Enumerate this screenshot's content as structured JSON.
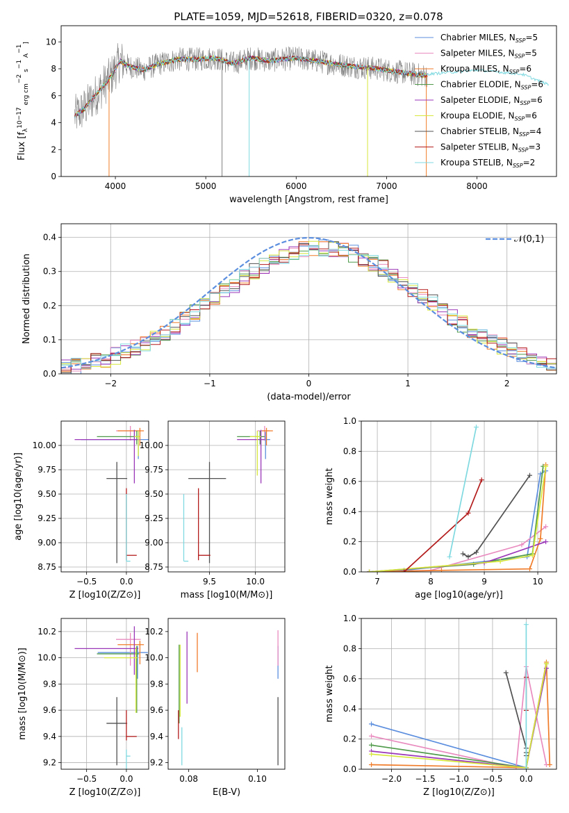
{
  "figure_title": "PLATE=1059, MJD=52618, FIBERID=0320, z=0.078",
  "colors": {
    "chabrier_miles": "#5b8ede",
    "salpeter_miles": "#e98bbf",
    "kroupa_miles": "#f07b28",
    "chabrier_elodie": "#4f9a4a",
    "salpeter_elodie": "#9a36b8",
    "kroupa_elodie": "#d7e83a",
    "chabrier_stelib": "#505050",
    "salpeter_stelib": "#b31b1b",
    "kroupa_stelib": "#7fd9e0",
    "data": "#808080",
    "grid": "#b0b0b0"
  },
  "chart_data": [
    {
      "id": "spectrum",
      "type": "line",
      "title": "PLATE=1059, MJD=52618, FIBERID=0320, z=0.078",
      "xlabel": "wavelength [Angstrom, rest frame]",
      "ylabel_parts": [
        "Flux [f",
        "λ",
        "10",
        "−17",
        " erg cm",
        "−2",
        " s",
        "−1",
        " A",
        "−1",
        "]"
      ],
      "xlim": [
        3400,
        8880
      ],
      "ylim": [
        0,
        11.2
      ],
      "xticks": [
        4000,
        5000,
        6000,
        7000,
        8000
      ],
      "yticks": [
        0,
        2,
        4,
        6,
        8,
        10
      ],
      "grid": false,
      "legend_position": "right",
      "legend": [
        {
          "model": "Chabrier MILES",
          "n": "5",
          "color_key": "chabrier_miles"
        },
        {
          "model": "Salpeter MILES",
          "n": "5",
          "color_key": "salpeter_miles"
        },
        {
          "model": "Kroupa MILES",
          "n": "6",
          "color_key": "kroupa_miles"
        },
        {
          "model": "Chabrier ELODIE",
          "n": "6",
          "color_key": "chabrier_elodie"
        },
        {
          "model": "Salpeter ELODIE",
          "n": "6",
          "color_key": "salpeter_elodie"
        },
        {
          "model": "Kroupa ELODIE",
          "n": "6",
          "color_key": "kroupa_elodie"
        },
        {
          "model": "Chabrier STELIB",
          "n": "4",
          "color_key": "chabrier_stelib"
        },
        {
          "model": "Salpeter STELIB",
          "n": "3",
          "color_key": "salpeter_stelib"
        },
        {
          "model": "Kroupa STELIB",
          "n": "2",
          "color_key": "kroupa_stelib"
        }
      ],
      "continuum": {
        "x": [
          3550,
          3650,
          3750,
          3850,
          3950,
          4050,
          4150,
          4300,
          4500,
          4700,
          4900,
          5100,
          5300,
          5500,
          5700,
          6000,
          6300,
          6600,
          6900,
          7200,
          7400
        ],
        "y": [
          4.5,
          5.0,
          5.8,
          6.6,
          7.4,
          8.6,
          8.2,
          7.9,
          8.4,
          8.7,
          8.7,
          8.8,
          8.4,
          8.8,
          8.6,
          8.8,
          8.5,
          8.2,
          8.0,
          7.7,
          7.5
        ]
      },
      "models_end_x": 7450,
      "model_tail": {
        "x": [
          7450,
          8000,
          8500,
          8800
        ],
        "y": [
          7.6,
          7.9,
          7.6,
          6.8
        ]
      },
      "model_dips": [
        {
          "x": 3930,
          "y": 0,
          "color_key": "kroupa_miles"
        },
        {
          "x": 5180,
          "y": 0,
          "color_key": "data"
        },
        {
          "x": 5480,
          "y": 0,
          "color_key": "kroupa_stelib"
        },
        {
          "x": 6790,
          "y": 0,
          "color_key": "kroupa_elodie"
        },
        {
          "x": 7440,
          "y": 0,
          "color_key": "kroupa_miles"
        }
      ]
    },
    {
      "id": "residuals",
      "type": "histogram",
      "xlabel": "(data-model)/error",
      "ylabel": "Normed distribution",
      "xlim": [
        -2.5,
        2.5
      ],
      "ylim": [
        0,
        0.44
      ],
      "xticks": [
        -2,
        -1,
        0,
        1,
        2
      ],
      "yticks": [
        0.0,
        0.1,
        0.2,
        0.3,
        0.4
      ],
      "grid": true,
      "legend_position": "top-right",
      "reference_curve": {
        "label": "N(0,1)",
        "mean": 0,
        "sigma": 1,
        "style": "dashed",
        "color": "#5b8ede"
      },
      "bin_width": 0.1
    },
    {
      "id": "age_vs_Z",
      "type": "errorbar",
      "xlabel": "Z [log10(Z/Z⊙)]",
      "ylabel": "age  [log10(age/yr)]",
      "xlim": [
        -0.82,
        0.28
      ],
      "ylim": [
        8.7,
        10.25
      ],
      "xticks": [
        -0.5,
        0.0
      ],
      "yticks": [
        8.75,
        9.0,
        9.25,
        9.5,
        9.75,
        10.0
      ],
      "grid": true,
      "points": [
        {
          "color_key": "chabrier_miles",
          "x": 0.15,
          "y": 10.06,
          "xerr": [
            0.72,
            0.13
          ],
          "yerr": [
            0.2,
            0.08
          ]
        },
        {
          "color_key": "salpeter_miles",
          "x": 0.05,
          "y": 10.15,
          "xerr": [
            0.18,
            0.13
          ],
          "yerr": [
            0.1,
            0.05
          ]
        },
        {
          "color_key": "kroupa_miles",
          "x": 0.17,
          "y": 10.15,
          "xerr": [
            0.28,
            0.05
          ],
          "yerr": [
            0.15,
            0.03
          ]
        },
        {
          "color_key": "chabrier_elodie",
          "x": 0.13,
          "y": 10.09,
          "xerr": [
            0.5,
            0.03
          ],
          "yerr": [
            0.08,
            0.06
          ]
        },
        {
          "color_key": "salpeter_elodie",
          "x": 0.1,
          "y": 10.06,
          "xerr": [
            0.75,
            0.05
          ],
          "yerr": [
            0.45,
            0.1
          ]
        },
        {
          "color_key": "kroupa_elodie",
          "x": 0.15,
          "y": 10.09,
          "xerr": [
            0.05,
            0.02
          ],
          "yerr": [
            0.2,
            0.06
          ]
        },
        {
          "color_key": "chabrier_stelib",
          "x": -0.12,
          "y": 9.66,
          "xerr": [
            0.13,
            0.13
          ],
          "yerr": [
            0.87,
            0.17
          ]
        },
        {
          "color_key": "salpeter_stelib",
          "x": 0.0,
          "y": 8.87,
          "xerr": [
            0.0,
            0.13
          ],
          "yerr": [
            0.05,
            0.69
          ]
        },
        {
          "color_key": "kroupa_stelib",
          "x": 0.0,
          "y": 8.81,
          "xerr": [
            0.0,
            0.05
          ],
          "yerr": [
            0.0,
            0.69
          ]
        }
      ]
    },
    {
      "id": "age_vs_mass",
      "type": "errorbar",
      "xlabel": "mass [log10(M/M⊙)]",
      "ylabel": "",
      "xlim": [
        9.05,
        10.32
      ],
      "ylim": [
        8.7,
        10.25
      ],
      "xticks": [
        9.5,
        10.0
      ],
      "yticks": [
        8.75,
        9.0,
        9.25,
        9.5,
        9.75,
        10.0
      ],
      "grid": true,
      "points": [
        {
          "color_key": "chabrier_miles",
          "x": 10.11,
          "y": 10.06,
          "xerr": [
            0.03,
            0.05
          ],
          "yerr": [
            0.2,
            0.08
          ]
        },
        {
          "color_key": "salpeter_miles",
          "x": 10.1,
          "y": 10.15,
          "xerr": [
            0.08,
            0.05
          ],
          "yerr": [
            0.1,
            0.05
          ]
        },
        {
          "color_key": "kroupa_miles",
          "x": 10.12,
          "y": 10.15,
          "xerr": [
            0.05,
            0.07
          ],
          "yerr": [
            0.15,
            0.03
          ]
        },
        {
          "color_key": "chabrier_elodie",
          "x": 10.05,
          "y": 10.09,
          "xerr": [
            0.25,
            0.05
          ],
          "yerr": [
            0.08,
            0.06
          ]
        },
        {
          "color_key": "salpeter_elodie",
          "x": 10.06,
          "y": 10.06,
          "xerr": [
            0.26,
            0.04
          ],
          "yerr": [
            0.45,
            0.1
          ]
        },
        {
          "color_key": "kroupa_elodie",
          "x": 10.02,
          "y": 10.09,
          "xerr": [
            0.08,
            0.04
          ],
          "yerr": [
            0.4,
            0.06
          ]
        },
        {
          "color_key": "chabrier_stelib",
          "x": 9.5,
          "y": 9.66,
          "xerr": [
            0.23,
            0.18
          ],
          "yerr": [
            0.87,
            0.17
          ]
        },
        {
          "color_key": "salpeter_stelib",
          "x": 9.38,
          "y": 8.87,
          "xerr": [
            0.0,
            0.13
          ],
          "yerr": [
            0.05,
            0.69
          ]
        },
        {
          "color_key": "kroupa_stelib",
          "x": 9.22,
          "y": 8.81,
          "xerr": [
            0.0,
            0.05
          ],
          "yerr": [
            0.0,
            0.69
          ]
        }
      ]
    },
    {
      "id": "weight_vs_age",
      "type": "line",
      "xlabel": "age  [log10(age/yr)]",
      "ylabel": "mass weight",
      "xlim": [
        6.7,
        10.35
      ],
      "ylim": [
        0,
        1.0
      ],
      "xticks": [
        7,
        8,
        9,
        10
      ],
      "yticks": [
        0.0,
        0.2,
        0.4,
        0.6,
        0.8,
        1.0
      ],
      "grid": true,
      "series": [
        {
          "color_key": "chabrier_miles",
          "x": [
            6.85,
            7.5,
            9.8,
            10.05,
            10.15
          ],
          "y": [
            0.0,
            0.01,
            0.1,
            0.65,
            0.67
          ]
        },
        {
          "color_key": "salpeter_miles",
          "x": [
            6.85,
            8.0,
            9.7,
            10.15
          ],
          "y": [
            0.0,
            0.01,
            0.18,
            0.3
          ]
        },
        {
          "color_key": "kroupa_miles",
          "x": [
            6.85,
            8.2,
            9.85,
            10.05,
            10.15
          ],
          "y": [
            0.0,
            0.01,
            0.02,
            0.22,
            0.71
          ]
        },
        {
          "color_key": "chabrier_elodie",
          "x": [
            6.85,
            8.8,
            9.9,
            10.1
          ],
          "y": [
            0.0,
            0.05,
            0.12,
            0.7
          ]
        },
        {
          "color_key": "salpeter_elodie",
          "x": [
            6.85,
            9.0,
            10.15
          ],
          "y": [
            0.0,
            0.06,
            0.2
          ]
        },
        {
          "color_key": "kroupa_elodie",
          "x": [
            6.85,
            9.3,
            9.9,
            10.15
          ],
          "y": [
            0.0,
            0.07,
            0.11,
            0.7
          ]
        },
        {
          "color_key": "chabrier_stelib",
          "x": [
            8.6,
            8.7,
            8.85,
            9.85
          ],
          "y": [
            0.12,
            0.1,
            0.13,
            0.64
          ]
        },
        {
          "color_key": "salpeter_stelib",
          "x": [
            7.5,
            8.7,
            8.95
          ],
          "y": [
            0.0,
            0.39,
            0.61
          ]
        },
        {
          "color_key": "kroupa_stelib",
          "x": [
            8.35,
            8.85
          ],
          "y": [
            0.1,
            0.96
          ]
        }
      ]
    },
    {
      "id": "mass_vs_Z",
      "type": "errorbar",
      "xlabel": "Z [log10(Z/Z⊙)]",
      "ylabel": "mass [log10(M/M⊙)]",
      "xlim": [
        -0.82,
        0.28
      ],
      "ylim": [
        9.15,
        10.3
      ],
      "xticks": [
        -0.5,
        0.0
      ],
      "yticks": [
        9.2,
        9.4,
        9.6,
        9.8,
        10.0,
        10.2
      ],
      "grid": true,
      "points": [
        {
          "color_key": "chabrier_miles",
          "x": 0.14,
          "y": 10.04,
          "xerr": [
            0.5,
            0.13
          ],
          "yerr": [
            0.2,
            0.05
          ]
        },
        {
          "color_key": "salpeter_miles",
          "x": 0.05,
          "y": 10.14,
          "xerr": [
            0.18,
            0.13
          ],
          "yerr": [
            0.2,
            0.05
          ]
        },
        {
          "color_key": "kroupa_miles",
          "x": 0.17,
          "y": 10.1,
          "xerr": [
            0.28,
            0.05
          ],
          "yerr": [
            0.15,
            0.03
          ]
        },
        {
          "color_key": "chabrier_elodie",
          "x": 0.13,
          "y": 10.03,
          "xerr": [
            0.5,
            0.03
          ],
          "yerr": [
            0.45,
            0.06
          ]
        },
        {
          "color_key": "salpeter_elodie",
          "x": 0.1,
          "y": 10.07,
          "xerr": [
            0.75,
            0.05
          ],
          "yerr": [
            0.2,
            0.17
          ]
        },
        {
          "color_key": "kroupa_elodie",
          "x": 0.12,
          "y": 10.0,
          "xerr": [
            0.4,
            0.02
          ],
          "yerr": [
            0.42,
            0.08
          ]
        },
        {
          "color_key": "chabrier_stelib",
          "x": -0.12,
          "y": 9.5,
          "xerr": [
            0.13,
            0.13
          ],
          "yerr": [
            0.32,
            0.2
          ]
        },
        {
          "color_key": "salpeter_stelib",
          "x": 0.0,
          "y": 9.4,
          "xerr": [
            0.0,
            0.13
          ],
          "yerr": [
            0.03,
            0.2
          ]
        },
        {
          "color_key": "kroupa_stelib",
          "x": 0.0,
          "y": 9.25,
          "xerr": [
            0.0,
            0.05
          ],
          "yerr": [
            0.1,
            0.05
          ]
        }
      ]
    },
    {
      "id": "mass_vs_ebv",
      "type": "errorbar",
      "xlabel": "E(B-V)",
      "ylabel": "",
      "xlim": [
        0.074,
        0.108
      ],
      "ylim": [
        9.15,
        10.3
      ],
      "xticks": [
        0.08,
        0.1
      ],
      "yticks": [
        9.2,
        9.4,
        9.6,
        9.8,
        10.0,
        10.2
      ],
      "grid": false,
      "points": [
        {
          "color_key": "chabrier_miles",
          "x": 0.106,
          "y": 10.04,
          "yerr": [
            0.2,
            0.05
          ]
        },
        {
          "color_key": "salpeter_miles",
          "x": 0.106,
          "y": 10.14,
          "yerr": [
            0.2,
            0.07
          ]
        },
        {
          "color_key": "kroupa_miles",
          "x": 0.0825,
          "y": 10.04,
          "yerr": [
            0.15,
            0.15
          ]
        },
        {
          "color_key": "chabrier_elodie",
          "x": 0.0772,
          "y": 9.9,
          "yerr": [
            0.4,
            0.2
          ]
        },
        {
          "color_key": "salpeter_elodie",
          "x": 0.0795,
          "y": 9.9,
          "yerr": [
            0.25,
            0.3
          ]
        },
        {
          "color_key": "kroupa_elodie",
          "x": 0.0775,
          "y": 9.8,
          "yerr": [
            0.25,
            0.3
          ]
        },
        {
          "color_key": "chabrier_stelib",
          "x": 0.106,
          "y": 9.45,
          "yerr": [
            0.27,
            0.25
          ]
        },
        {
          "color_key": "salpeter_stelib",
          "x": 0.077,
          "y": 9.5,
          "yerr": [
            0.12,
            0.1
          ]
        },
        {
          "color_key": "kroupa_stelib",
          "x": 0.078,
          "y": 9.3,
          "yerr": [
            0.12,
            0.17
          ]
        }
      ]
    },
    {
      "id": "weight_vs_Z",
      "type": "line",
      "xlabel": "Z [log10(Z/Z⊙)]",
      "ylabel": "mass weight",
      "xlim": [
        -2.45,
        0.45
      ],
      "ylim": [
        0,
        1.0
      ],
      "xticks": [
        -2.0,
        -1.5,
        -1.0,
        -0.5,
        0.0
      ],
      "yticks": [
        0.0,
        0.2,
        0.4,
        0.6,
        0.8,
        1.0
      ],
      "grid": true,
      "series": [
        {
          "color_key": "chabrier_miles",
          "x": [
            -2.3,
            0.0,
            0.3
          ],
          "y": [
            0.3,
            0.01,
            0.67
          ]
        },
        {
          "color_key": "salpeter_miles",
          "x": [
            -2.3,
            -0.15,
            0.0,
            0.3
          ],
          "y": [
            0.22,
            0.01,
            0.68,
            0.03
          ]
        },
        {
          "color_key": "kroupa_miles",
          "x": [
            -2.3,
            0.0,
            0.3,
            0.35
          ],
          "y": [
            0.03,
            0.01,
            0.71,
            0.03
          ]
        },
        {
          "color_key": "chabrier_elodie",
          "x": [
            -2.3,
            0.0,
            0.3
          ],
          "y": [
            0.16,
            0.01,
            0.7
          ]
        },
        {
          "color_key": "salpeter_elodie",
          "x": [
            -2.3,
            0.0,
            0.3
          ],
          "y": [
            0.12,
            0.01,
            0.67
          ]
        },
        {
          "color_key": "kroupa_elodie",
          "x": [
            -2.3,
            0.0,
            0.3
          ],
          "y": [
            0.1,
            0.01,
            0.7
          ]
        },
        {
          "color_key": "chabrier_stelib",
          "x": [
            -0.3,
            0.0,
            0.0,
            0.0
          ],
          "y": [
            0.64,
            0.14,
            0.11,
            0.09
          ]
        },
        {
          "color_key": "salpeter_stelib",
          "x": [
            0.0,
            0.0
          ],
          "y": [
            0.61,
            0.39
          ]
        },
        {
          "color_key": "kroupa_stelib",
          "x": [
            0.0,
            0.0
          ],
          "y": [
            0.96,
            0.0
          ]
        }
      ]
    }
  ]
}
